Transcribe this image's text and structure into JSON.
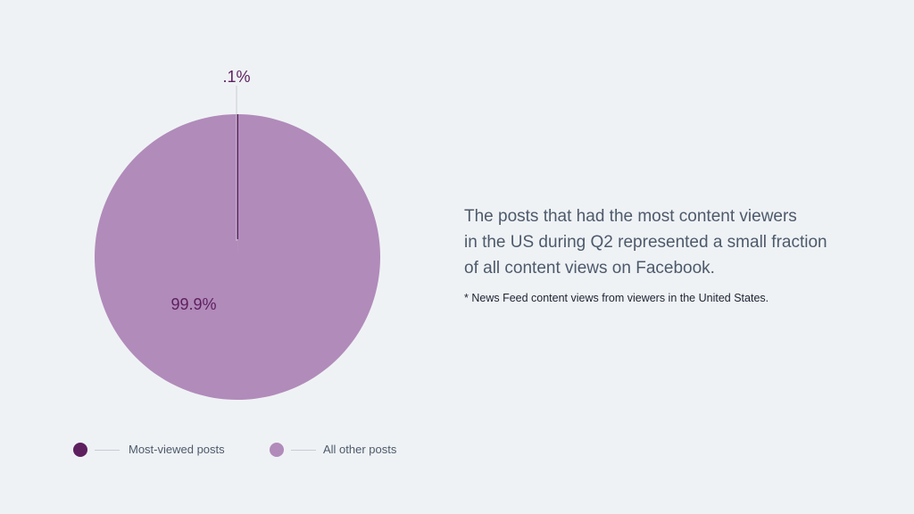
{
  "chart_data": {
    "type": "pie",
    "categories": [
      "Most-viewed posts",
      "All other posts"
    ],
    "values": [
      0.1,
      99.9
    ],
    "data_labels": [
      ".1%",
      "99.9%"
    ],
    "colors": [
      "#5e1f5f",
      "#b18bba"
    ],
    "title": "The posts that had the most content viewers in the US during Q2 represented a small fraction of all content views on Facebook.",
    "footnote": "* News Feed content views from viewers in the United States.",
    "legend_position": "bottom-left"
  },
  "headline_lines": [
    "The posts that had the most content viewers",
    "in the US during Q2 represented a small fraction",
    "of all content views on Facebook."
  ],
  "footnote": "* News Feed content views from viewers in the United States.",
  "legend": [
    {
      "label": "Most-viewed posts",
      "color": "#5e1f5f"
    },
    {
      "label": "All other posts",
      "color": "#b18bba"
    }
  ],
  "colors": {
    "background": "#eff2f5",
    "text_primary": "#4d5a6b",
    "label_dark": "#5e1f5f"
  }
}
